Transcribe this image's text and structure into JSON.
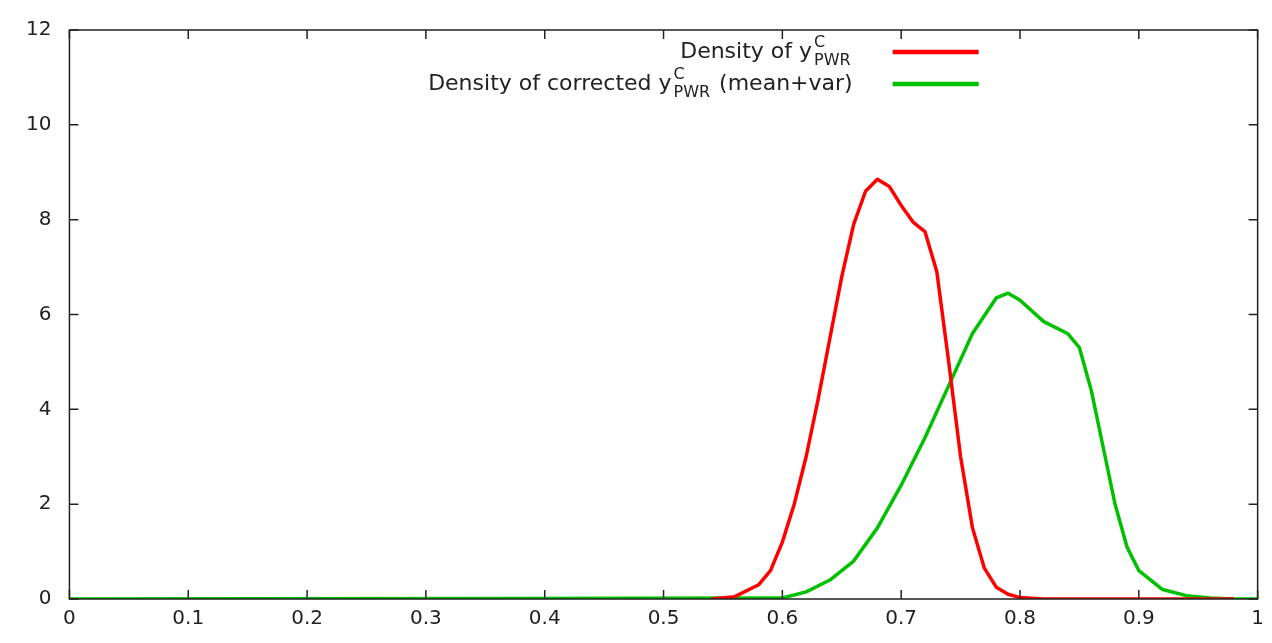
{
  "chart_data": {
    "type": "line",
    "xlim": [
      0,
      1
    ],
    "xticks": [
      0,
      0.1,
      0.2,
      0.3,
      0.4,
      0.5,
      0.6,
      0.7,
      0.8,
      0.9,
      1
    ],
    "ylim": [
      0,
      12
    ],
    "yticks": [
      0,
      2,
      4,
      6,
      8,
      10,
      12
    ],
    "grid": false,
    "legend": "top right",
    "marker": "none",
    "line_style": "solid",
    "series": [
      {
        "name": "Density of y$^{C}$$_{PWR}$",
        "color": "#ff0000",
        "x": [
          0.54,
          0.56,
          0.58,
          0.59,
          0.6,
          0.61,
          0.62,
          0.63,
          0.64,
          0.65,
          0.66,
          0.67,
          0.68,
          0.69,
          0.7,
          0.71,
          0.72,
          0.73,
          0.74,
          0.75,
          0.76,
          0.77,
          0.78,
          0.79,
          0.8,
          0.82,
          0.98
        ],
        "values": [
          0,
          0.05,
          0.3,
          0.6,
          1.2,
          2.0,
          3.0,
          4.2,
          5.5,
          6.8,
          7.9,
          8.6,
          8.85,
          8.7,
          8.3,
          7.95,
          7.75,
          6.9,
          5.0,
          3.0,
          1.5,
          0.65,
          0.25,
          0.1,
          0.03,
          0,
          0
        ]
      },
      {
        "name": "Density of corrected y$^{C}$$_{PWR}$ (mean+var)",
        "color": "#00c000",
        "x": [
          0,
          0.6,
          0.62,
          0.64,
          0.66,
          0.68,
          0.7,
          0.72,
          0.74,
          0.76,
          0.78,
          0.79,
          0.8,
          0.82,
          0.84,
          0.85,
          0.86,
          0.87,
          0.88,
          0.89,
          0.9,
          0.92,
          0.94,
          0.96,
          0.98,
          1
        ],
        "values": [
          0,
          0.02,
          0.15,
          0.4,
          0.8,
          1.5,
          2.4,
          3.4,
          4.5,
          5.6,
          6.35,
          6.45,
          6.3,
          5.85,
          5.6,
          5.3,
          4.4,
          3.2,
          2.0,
          1.1,
          0.6,
          0.2,
          0.07,
          0.02,
          0,
          0
        ]
      }
    ]
  }
}
